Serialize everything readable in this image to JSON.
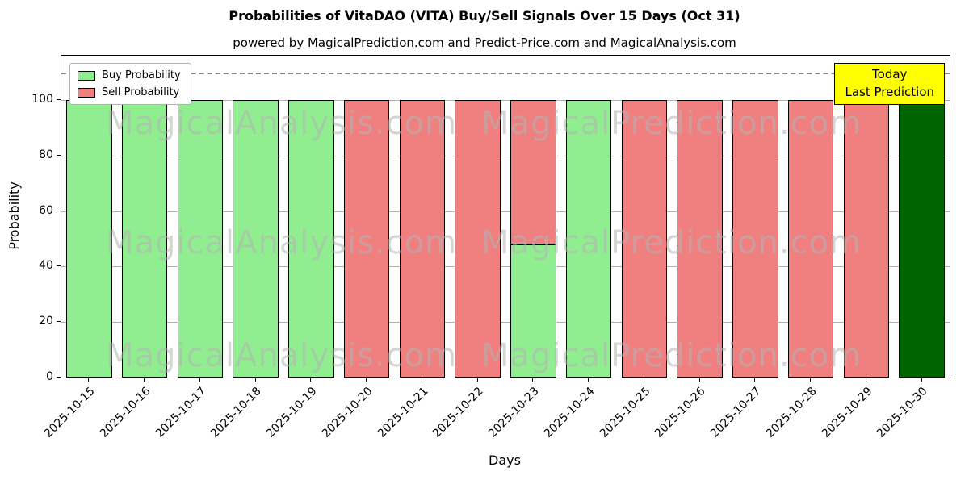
{
  "title": "Probabilities of VitaDAO (VITA) Buy/Sell Signals Over 15 Days (Oct 31)",
  "subtitle": "powered by MagicalPrediction.com and Predict-Price.com and MagicalAnalysis.com",
  "legend": [
    {
      "label": "Buy Probability",
      "color": "#90EE90"
    },
    {
      "label": "Sell Probability",
      "color": "#F08080"
    }
  ],
  "today_box": {
    "line1": "Today",
    "line2": "Last Prediction",
    "bg": "#FFFF00"
  },
  "watermarks": {
    "row_texts": [
      "MagicalAnalysis.com",
      "MagicalPrediction.com"
    ],
    "color": "#B4B4B4"
  },
  "chart_data": {
    "type": "bar",
    "stacked": true,
    "title": "Probabilities of VitaDAO (VITA) Buy/Sell Signals Over 15 Days (Oct 31)",
    "xlabel": "Days",
    "ylabel": "Probability",
    "categories": [
      "2025-10-15",
      "2025-10-16",
      "2025-10-17",
      "2025-10-18",
      "2025-10-19",
      "2025-10-20",
      "2025-10-21",
      "2025-10-22",
      "2025-10-23",
      "2025-10-24",
      "2025-10-25",
      "2025-10-26",
      "2025-10-27",
      "2025-10-28",
      "2025-10-29",
      "2025-10-30"
    ],
    "series": [
      {
        "name": "Buy Probability",
        "color": "#90EE90",
        "values": [
          100,
          100,
          100,
          100,
          100,
          0,
          0,
          0,
          48,
          100,
          0,
          0,
          0,
          0,
          0,
          100
        ]
      },
      {
        "name": "Sell Probability",
        "color": "#F08080",
        "values": [
          0,
          0,
          0,
          0,
          0,
          100,
          100,
          100,
          52,
          0,
          100,
          100,
          100,
          100,
          100,
          0
        ]
      }
    ],
    "today_bar": {
      "category": "2025-10-30",
      "color": "#006400"
    },
    "yticks": [
      0,
      20,
      40,
      60,
      80,
      100
    ],
    "ylim": [
      0,
      116
    ],
    "dashed_line_y": 110,
    "grid": true,
    "legend_position": "upper left"
  }
}
